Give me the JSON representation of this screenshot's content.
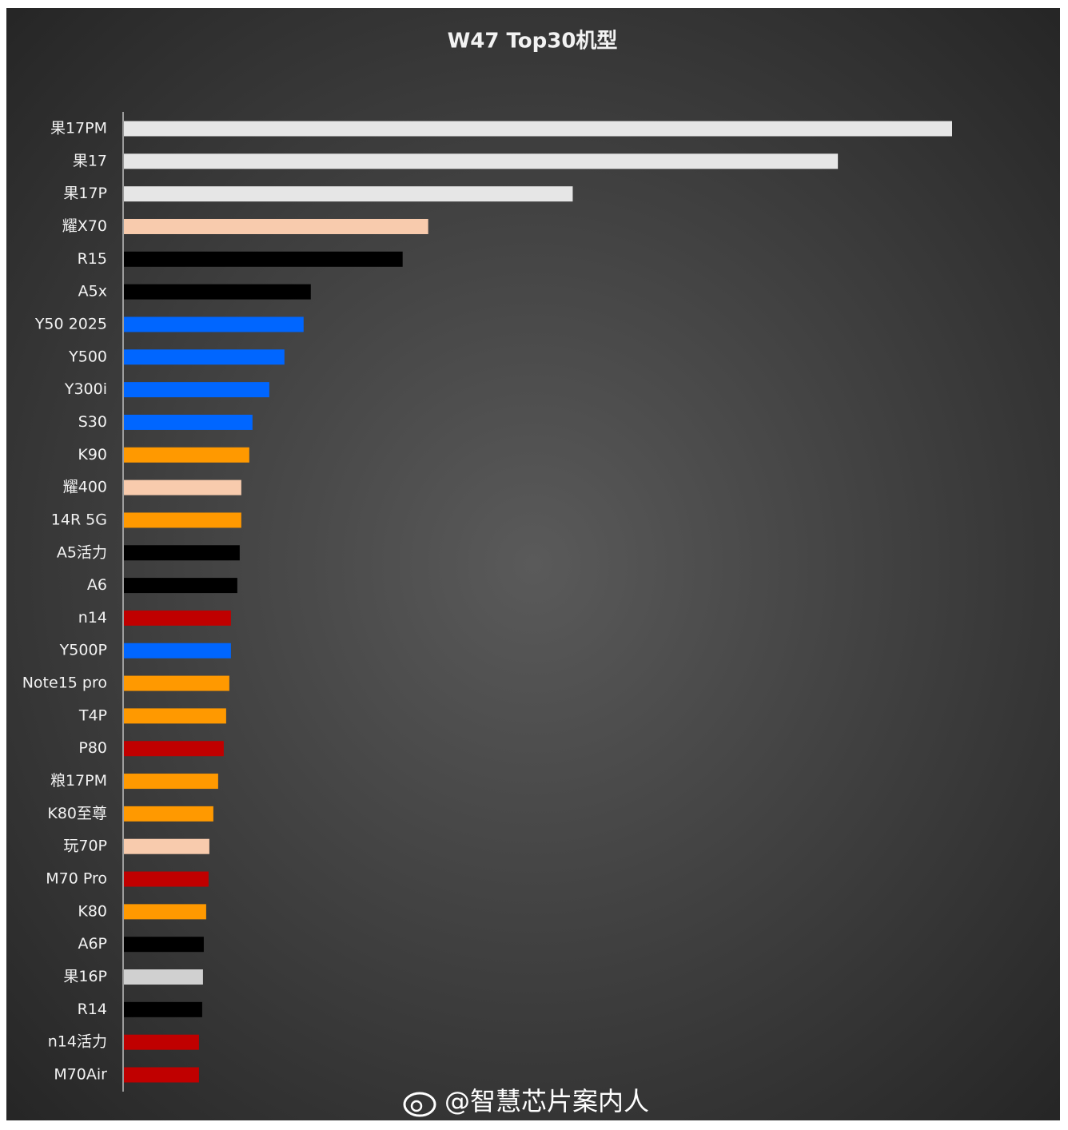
{
  "chart_data": {
    "type": "hbar",
    "title": "W47 Top30机型",
    "categories": [
      "果17PM",
      "果17",
      "果17P",
      "耀X70",
      "R15",
      "A5x",
      "Y50 2025",
      "Y500",
      "Y300i",
      "S30",
      "K90",
      "耀400",
      "14R 5G",
      "A5活力",
      "A6",
      "n14",
      "Y500P",
      "Note15 pro",
      "T4P",
      "P80",
      "粮17PM",
      "K80至尊",
      "玩70P",
      "M70 Pro",
      "K80",
      "A6P",
      "果16P",
      "R14",
      "n14活力",
      "M70Air"
    ],
    "values": [
      1037,
      894,
      562,
      381,
      349,
      234,
      225,
      201,
      182,
      161,
      157,
      147,
      147,
      145,
      142,
      134,
      134,
      132,
      128,
      125,
      118,
      112,
      107,
      106,
      103,
      100,
      99,
      98,
      94,
      94
    ],
    "colors": [
      "#e6e6e6",
      "#e6e6e6",
      "#e6e6e6",
      "#f8cbad",
      "#000000",
      "#000000",
      "#0066ff",
      "#0066ff",
      "#0066ff",
      "#0066ff",
      "#ff9900",
      "#f8cbad",
      "#ff9900",
      "#000000",
      "#000000",
      "#c00000",
      "#0066ff",
      "#ff9900",
      "#ff9900",
      "#c00000",
      "#ff9900",
      "#ff9900",
      "#f8cbad",
      "#c00000",
      "#ff9900",
      "#000000",
      "#d0d0d0",
      "#000000",
      "#c00000",
      "#c00000"
    ],
    "watermark": "@智慧芯片案内人"
  }
}
